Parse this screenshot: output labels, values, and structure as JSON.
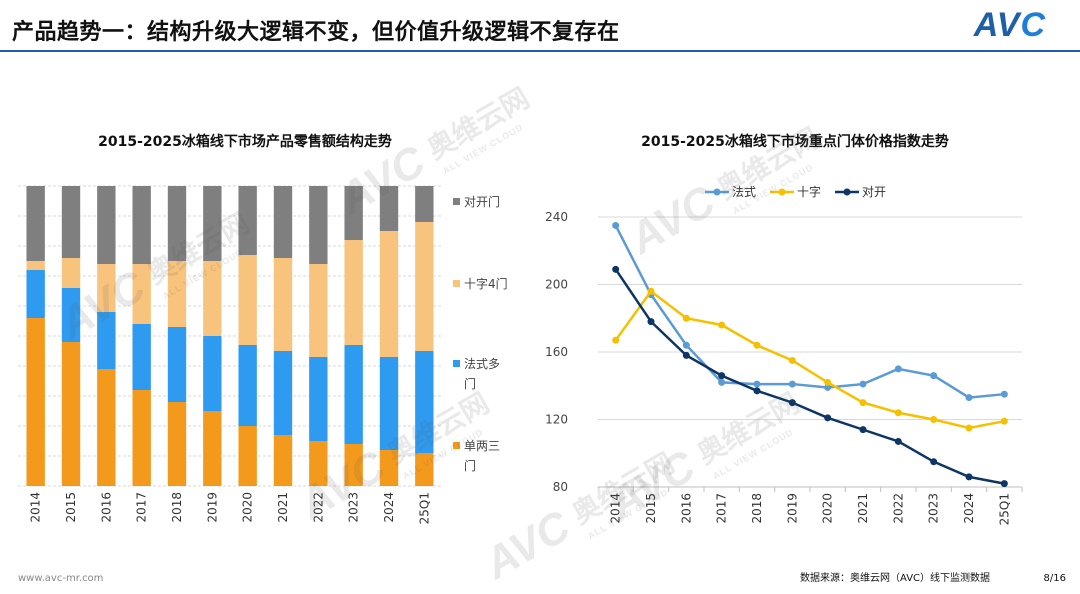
{
  "header": {
    "title": "产品趋势一：结构升级大逻辑不变，但价值升级逻辑不复存在",
    "logo_text": "AVC"
  },
  "watermark": {
    "cn": "奥维云网",
    "en": "ALL VIEW CLOUD",
    "logo": "AVC"
  },
  "footer": {
    "website": "www.avc-mr.com",
    "source": "数据来源：奥维云网（AVC）线下监测数据",
    "page": "8/16"
  },
  "chart_data": [
    {
      "type": "bar",
      "stacked": true,
      "normalized": true,
      "title": "2015-2025冰箱线下市场产品零售额结构走势",
      "categories": [
        "2014",
        "2015",
        "2016",
        "2017",
        "2018",
        "2019",
        "2020",
        "2021",
        "2022",
        "2023",
        "2024",
        "25Q1"
      ],
      "series": [
        {
          "name": "单两三门",
          "color": "#f39a1c",
          "values": [
            0.56,
            0.48,
            0.39,
            0.32,
            0.28,
            0.25,
            0.2,
            0.17,
            0.15,
            0.14,
            0.12,
            0.11
          ]
        },
        {
          "name": "法式多门",
          "color": "#2e9bf0",
          "values": [
            0.16,
            0.18,
            0.19,
            0.22,
            0.25,
            0.25,
            0.27,
            0.28,
            0.28,
            0.33,
            0.31,
            0.34
          ]
        },
        {
          "name": "十字4门",
          "color": "#f8c37c",
          "values": [
            0.03,
            0.1,
            0.16,
            0.2,
            0.22,
            0.25,
            0.3,
            0.31,
            0.31,
            0.35,
            0.42,
            0.43
          ]
        },
        {
          "name": "对开门",
          "color": "#7f7f7f",
          "values": [
            0.25,
            0.24,
            0.26,
            0.26,
            0.25,
            0.25,
            0.23,
            0.24,
            0.26,
            0.18,
            0.15,
            0.12
          ]
        }
      ],
      "legend_position": "right",
      "legend_labels": [
        {
          "series": "对开门",
          "lines": [
            "对开门"
          ]
        },
        {
          "series": "十字4门",
          "lines": [
            "十字4门"
          ]
        },
        {
          "series": "法式多门",
          "lines": [
            "法式多",
            "门"
          ]
        },
        {
          "series": "单两三门",
          "lines": [
            "单两三",
            "门"
          ]
        }
      ]
    },
    {
      "type": "line",
      "title": "2015-2025冰箱线下市场重点门体价格指数走势",
      "categories": [
        "2014",
        "2015",
        "2016",
        "2017",
        "2018",
        "2019",
        "2020",
        "2021",
        "2022",
        "2023",
        "2024",
        "25Q1"
      ],
      "series": [
        {
          "name": "法式",
          "color": "#5b9bd5",
          "values": [
            235,
            194,
            164,
            142,
            141,
            141,
            139,
            141,
            150,
            146,
            133,
            135
          ]
        },
        {
          "name": "十字",
          "color": "#f5c000",
          "values": [
            167,
            196,
            180,
            176,
            164,
            155,
            142,
            130,
            124,
            120,
            115,
            119
          ]
        },
        {
          "name": "对开",
          "color": "#0d3566",
          "values": [
            209,
            178,
            158,
            146,
            137,
            130,
            121,
            114,
            107,
            95,
            86,
            82
          ]
        }
      ],
      "ylim": [
        80,
        240
      ],
      "yticks": [
        80,
        120,
        160,
        200,
        240
      ],
      "legend_position": "top"
    }
  ]
}
